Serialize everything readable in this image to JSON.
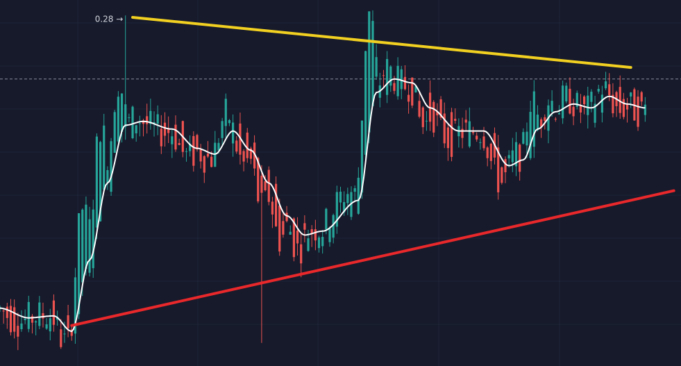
{
  "chart_data": {
    "type": "candlestick",
    "colors": {
      "background": "#161a2b",
      "grid": "#1f2437",
      "up": "#26a69a",
      "down": "#ef5350",
      "moving_average": "#ffffff",
      "resistance_line": "#f2d021",
      "support_line": "#e8282b",
      "price_line": "#8b8f9c",
      "label_text": "#d1d4dc"
    },
    "y_range": [
      0.1,
      0.29
    ],
    "x_range": [
      0,
      190
    ],
    "high_annotation": {
      "label": "0.28 →",
      "value": 0.28,
      "x": 35
    },
    "current_price_line": 0.249,
    "moving_average_anchors": [
      [
        0,
        0.13
      ],
      [
        8,
        0.125
      ],
      [
        15,
        0.126
      ],
      [
        20,
        0.118
      ],
      [
        25,
        0.155
      ],
      [
        30,
        0.195
      ],
      [
        35,
        0.225
      ],
      [
        40,
        0.227
      ],
      [
        48,
        0.223
      ],
      [
        55,
        0.213
      ],
      [
        60,
        0.21
      ],
      [
        65,
        0.222
      ],
      [
        70,
        0.212
      ],
      [
        75,
        0.195
      ],
      [
        80,
        0.178
      ],
      [
        85,
        0.168
      ],
      [
        90,
        0.17
      ],
      [
        100,
        0.186
      ],
      [
        105,
        0.242
      ],
      [
        110,
        0.249
      ],
      [
        115,
        0.247
      ],
      [
        120,
        0.234
      ],
      [
        128,
        0.222
      ],
      [
        135,
        0.222
      ],
      [
        142,
        0.204
      ],
      [
        146,
        0.207
      ],
      [
        150,
        0.223
      ],
      [
        155,
        0.232
      ],
      [
        160,
        0.236
      ],
      [
        165,
        0.234
      ],
      [
        170,
        0.24
      ],
      [
        175,
        0.236
      ],
      [
        180,
        0.234
      ]
    ],
    "volatility": 0.008,
    "wick_extremes": [
      {
        "x": 35,
        "high": 0.282
      },
      {
        "x": 73,
        "low": 0.112
      },
      {
        "x": 18,
        "low": 0.112
      }
    ],
    "resistance_line": {
      "start": [
        37,
        0.281
      ],
      "end": [
        176,
        0.255
      ]
    },
    "support_line": {
      "start": [
        20,
        0.121
      ],
      "end": [
        188,
        0.191
      ]
    }
  }
}
